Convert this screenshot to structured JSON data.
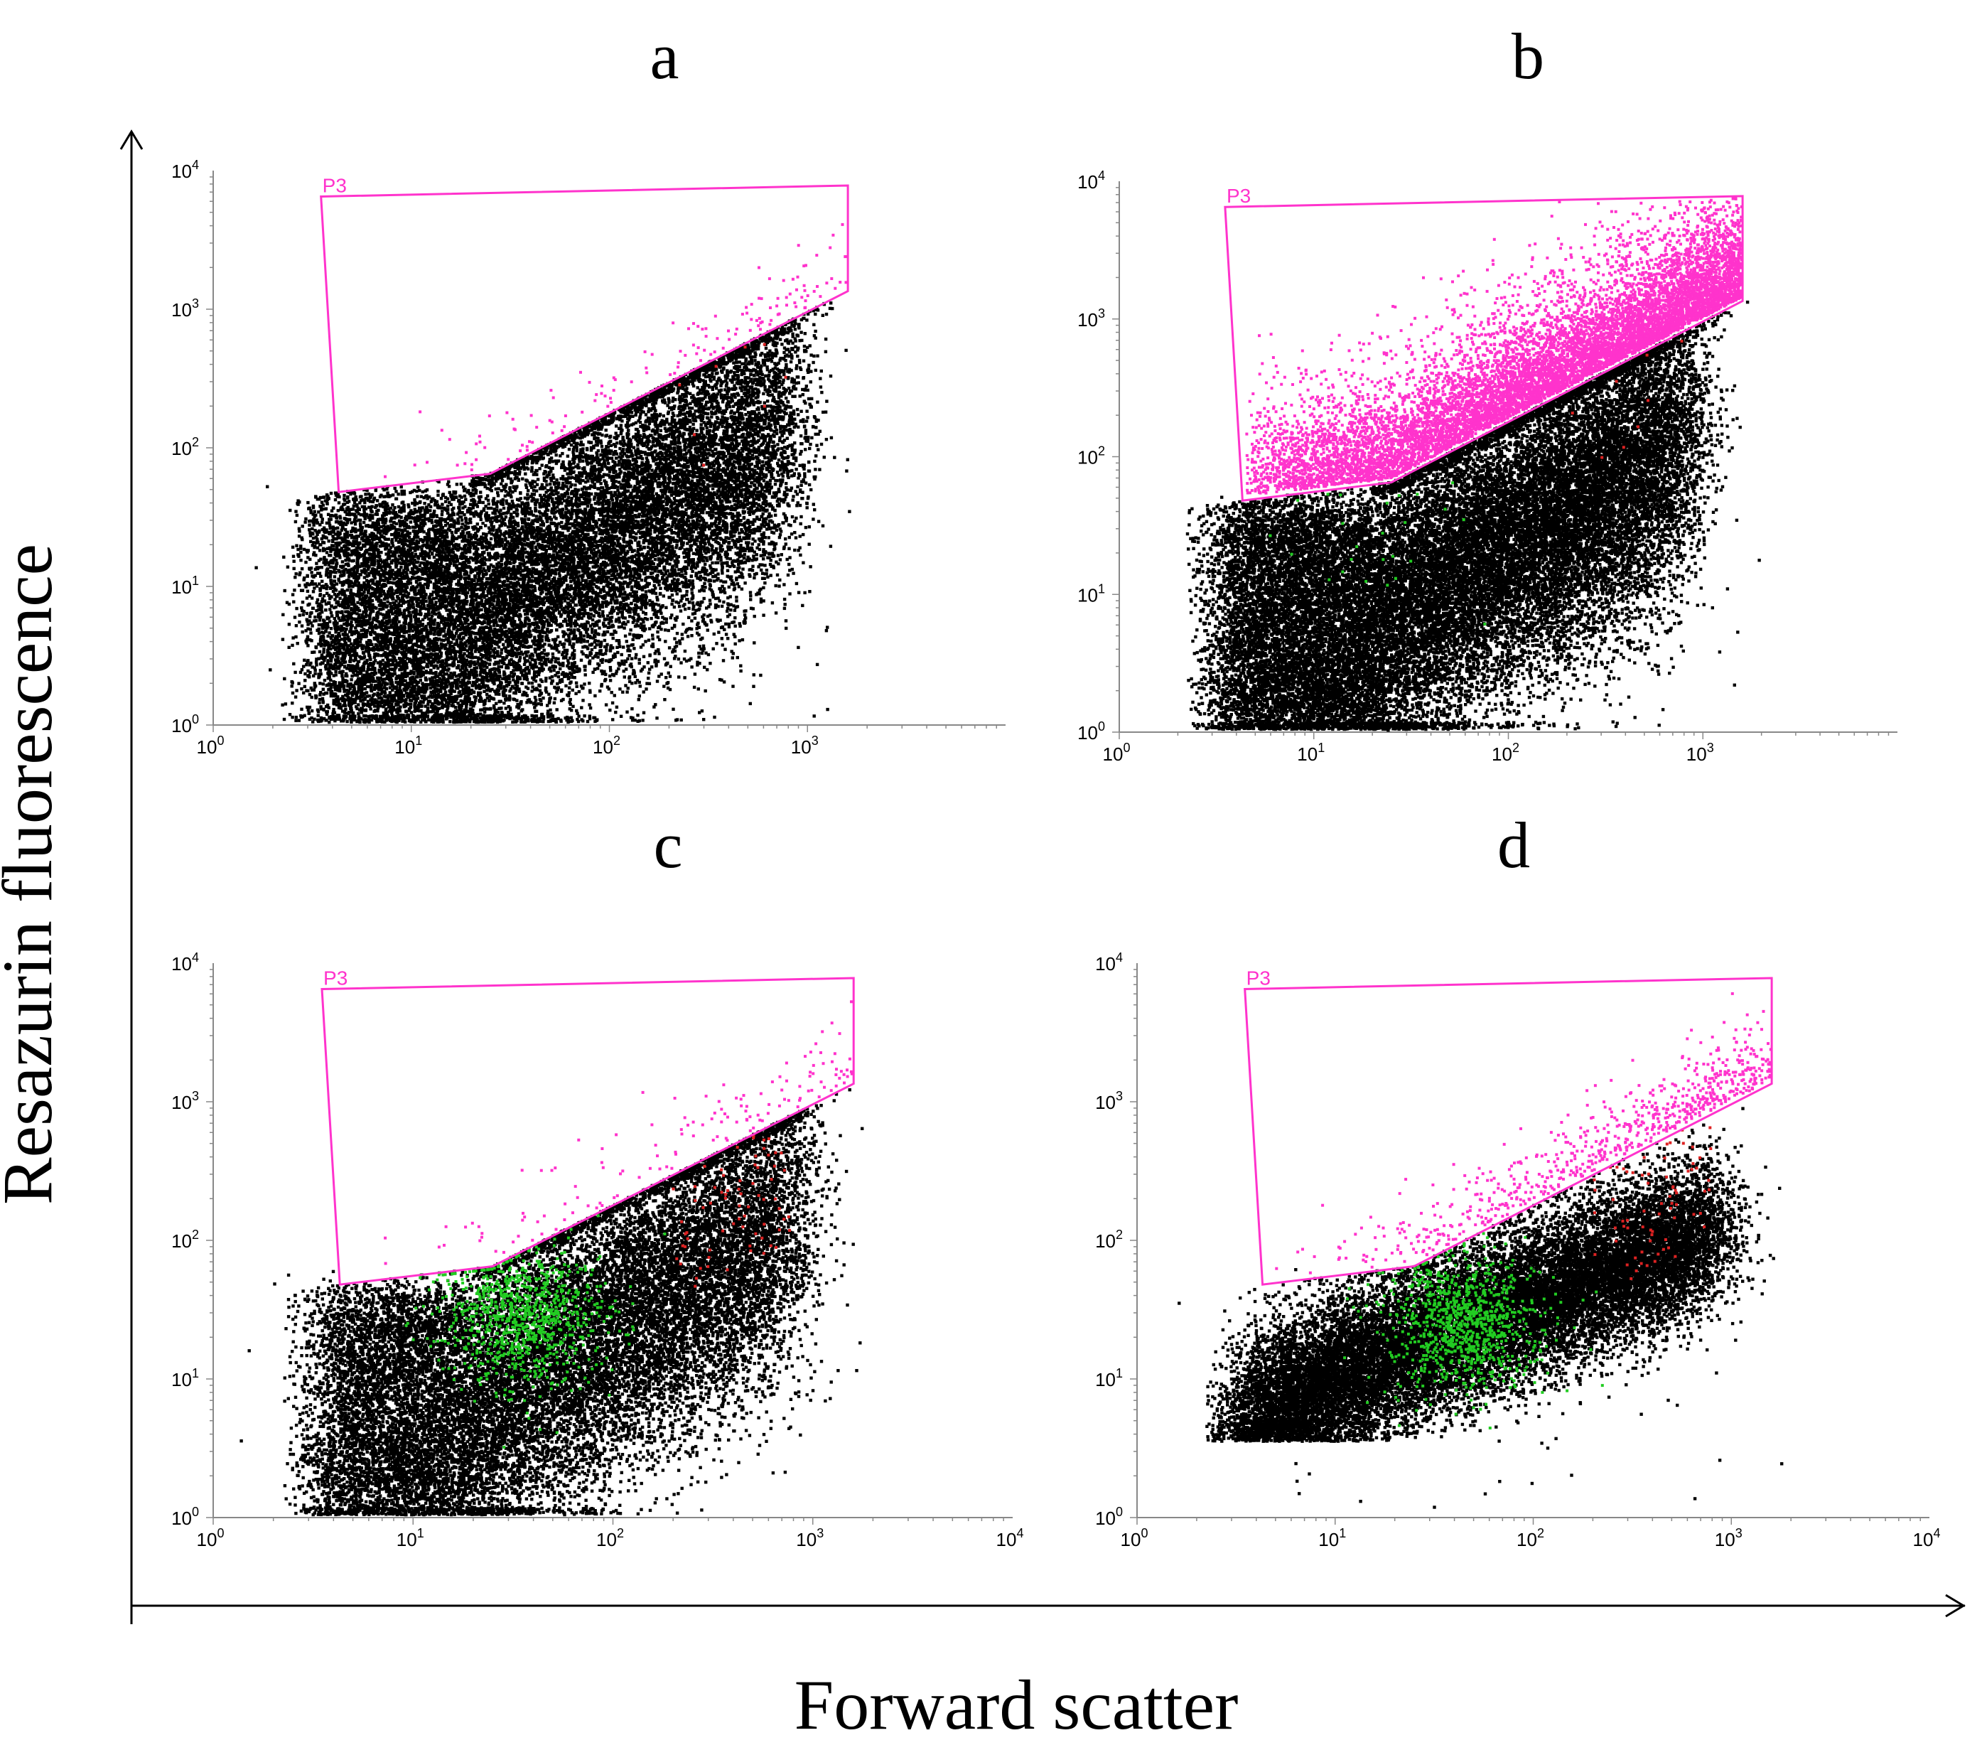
{
  "figure": {
    "xlabel": "Forward scatter",
    "ylabel": "Resazurin fluorescence"
  },
  "colors": {
    "ungated": "#000000",
    "gated": "#ff33cc",
    "green_population": "#22cc22",
    "red_population": "#dd2222",
    "gate_outline": "#ff33cc"
  },
  "chart_data": [
    {
      "type": "scatter",
      "panel": "a",
      "xscale": "log",
      "yscale": "log",
      "xlim": [
        1,
        10000
      ],
      "ylim": [
        1,
        10000
      ],
      "x_ticks": [
        "10^0",
        "10^1",
        "10^2",
        "10^3"
      ],
      "y_ticks": [
        "10^0",
        "10^1",
        "10^2",
        "10^3",
        "10^4"
      ],
      "gate": {
        "name": "P3",
        "vertices": [
          [
            3.5,
            6500
          ],
          [
            1600,
            7800
          ],
          [
            1600,
            1350
          ],
          [
            25,
            65
          ],
          [
            4.3,
            48
          ]
        ]
      },
      "density": "medium",
      "gated_events": "sparse",
      "green_events": "none",
      "red_events": "few"
    },
    {
      "type": "scatter",
      "panel": "b",
      "xscale": "log",
      "yscale": "log",
      "xlim": [
        1,
        10000
      ],
      "ylim": [
        1,
        10000
      ],
      "x_ticks": [
        "10^0",
        "10^1",
        "10^2",
        "10^3"
      ],
      "y_ticks": [
        "10^0",
        "10^1",
        "10^2",
        "10^3",
        "10^4"
      ],
      "gate": {
        "name": "P3",
        "vertices": [
          [
            3.5,
            6500
          ],
          [
            1600,
            7800
          ],
          [
            1600,
            1350
          ],
          [
            25,
            65
          ],
          [
            4.3,
            48
          ]
        ]
      },
      "density": "high",
      "gated_events": "dense",
      "green_events": "few",
      "red_events": "few"
    },
    {
      "type": "scatter",
      "panel": "c",
      "xscale": "log",
      "yscale": "log",
      "xlim": [
        1,
        10000
      ],
      "ylim": [
        1,
        10000
      ],
      "x_ticks": [
        "10^0",
        "10^1",
        "10^2",
        "10^3",
        "10^4"
      ],
      "y_ticks": [
        "10^0",
        "10^1",
        "10^2",
        "10^3",
        "10^4"
      ],
      "gate": {
        "name": "P3",
        "vertices": [
          [
            3.5,
            6500
          ],
          [
            1600,
            7800
          ],
          [
            1600,
            1350
          ],
          [
            25,
            65
          ],
          [
            4.3,
            48
          ]
        ]
      },
      "density": "medium",
      "gated_events": "sparse",
      "green_events": "many",
      "red_events": "some"
    },
    {
      "type": "scatter",
      "panel": "d",
      "xscale": "log",
      "yscale": "log",
      "xlim": [
        1,
        10000
      ],
      "ylim": [
        1,
        10000
      ],
      "x_ticks": [
        "10^0",
        "10^1",
        "10^2",
        "10^3",
        "10^4"
      ],
      "y_ticks": [
        "10^0",
        "10^1",
        "10^2",
        "10^3",
        "10^4"
      ],
      "gate": {
        "name": "P3",
        "vertices": [
          [
            3.5,
            6500
          ],
          [
            1600,
            7800
          ],
          [
            1600,
            1350
          ],
          [
            25,
            65
          ],
          [
            4.3,
            48
          ]
        ]
      },
      "density": "medium",
      "gated_events": "moderate",
      "green_events": "many",
      "red_events": "some"
    }
  ]
}
